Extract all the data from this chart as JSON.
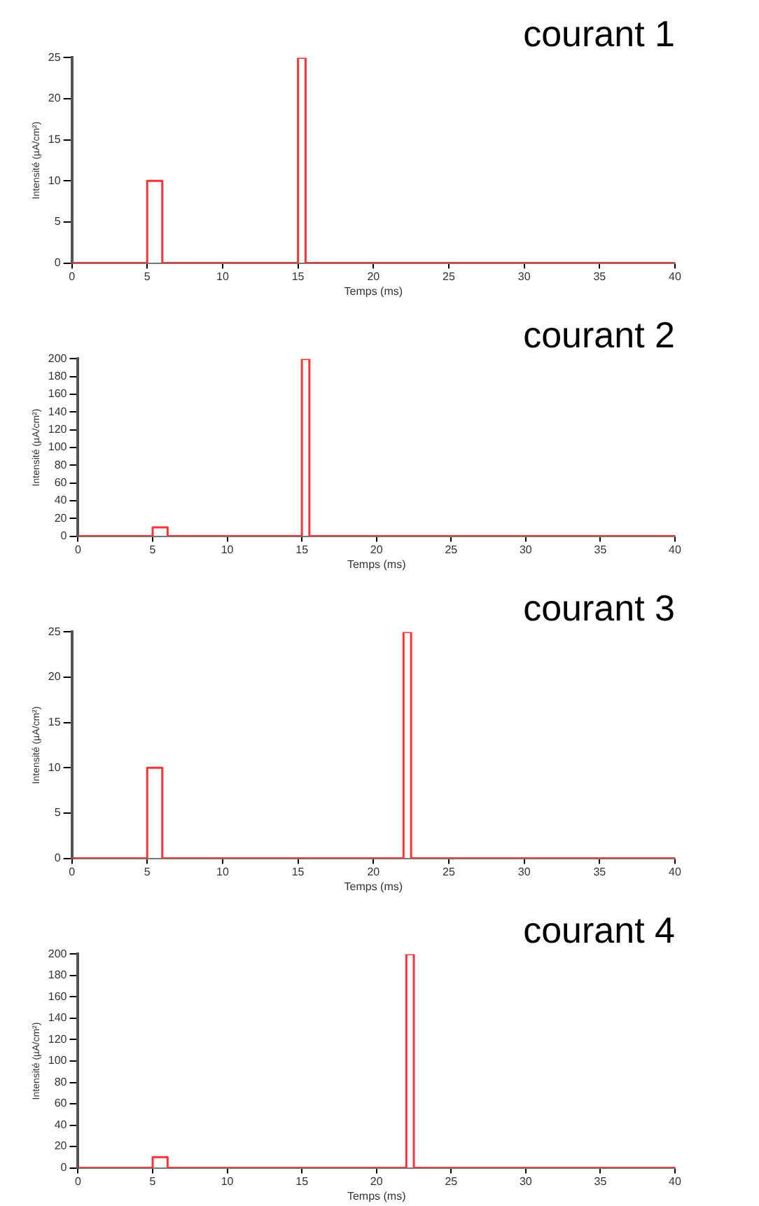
{
  "chart_data": [
    {
      "type": "line",
      "title": "courant 1",
      "xlabel": "Temps (ms)",
      "ylabel": "Intensité (µA/cm²)",
      "xlim": [
        0,
        40
      ],
      "xticks": [
        0,
        5,
        10,
        15,
        20,
        25,
        30,
        35,
        40
      ],
      "ylim": [
        0,
        25
      ],
      "yticks": [
        0,
        5,
        10,
        15,
        20,
        25
      ],
      "grid": false,
      "legend": false,
      "marker": "none",
      "line_style": "solid",
      "series": [
        {
          "color": "#ff3333",
          "x": [
            0,
            5,
            5,
            6,
            6,
            15,
            15,
            15.5,
            15.5,
            40
          ],
          "values": [
            0,
            0,
            10,
            10,
            0,
            0,
            25,
            25,
            0,
            0
          ]
        }
      ]
    },
    {
      "type": "line",
      "title": "courant 2",
      "xlabel": "Temps (ms)",
      "ylabel": "Intensité (µA/cm²)",
      "xlim": [
        0,
        40
      ],
      "xticks": [
        0,
        5,
        10,
        15,
        20,
        25,
        30,
        35,
        40
      ],
      "ylim": [
        0,
        200
      ],
      "yticks": [
        0,
        20,
        40,
        60,
        80,
        100,
        120,
        140,
        160,
        180,
        200
      ],
      "grid": false,
      "legend": false,
      "marker": "none",
      "line_style": "solid",
      "series": [
        {
          "color": "#ff3333",
          "x": [
            0,
            5,
            5,
            6,
            6,
            15,
            15,
            15.5,
            15.5,
            40
          ],
          "values": [
            0,
            0,
            10,
            10,
            0,
            0,
            200,
            200,
            0,
            0
          ]
        }
      ]
    },
    {
      "type": "line",
      "title": "courant 3",
      "xlabel": "Temps (ms)",
      "ylabel": "Intensité (µA/cm²)",
      "xlim": [
        0,
        40
      ],
      "xticks": [
        0,
        5,
        10,
        15,
        20,
        25,
        30,
        35,
        40
      ],
      "ylim": [
        0,
        25
      ],
      "yticks": [
        0,
        5,
        10,
        15,
        20,
        25
      ],
      "grid": false,
      "legend": false,
      "marker": "none",
      "line_style": "solid",
      "series": [
        {
          "color": "#ff3333",
          "x": [
            0,
            5,
            5,
            6,
            6,
            22,
            22,
            22.5,
            22.5,
            40
          ],
          "values": [
            0,
            0,
            10,
            10,
            0,
            0,
            25,
            25,
            0,
            0
          ]
        }
      ]
    },
    {
      "type": "line",
      "title": "courant 4",
      "xlabel": "Temps (ms)",
      "ylabel": "Intensité (µA/cm²)",
      "xlim": [
        0,
        40
      ],
      "xticks": [
        0,
        5,
        10,
        15,
        20,
        25,
        30,
        35,
        40
      ],
      "ylim": [
        0,
        200
      ],
      "yticks": [
        0,
        20,
        40,
        60,
        80,
        100,
        120,
        140,
        160,
        180,
        200
      ],
      "grid": false,
      "legend": false,
      "marker": "none",
      "line_style": "solid",
      "series": [
        {
          "color": "#ff3333",
          "x": [
            0,
            5,
            5,
            6,
            6,
            22,
            22,
            22.5,
            22.5,
            40
          ],
          "values": [
            0,
            0,
            10,
            10,
            0,
            0,
            200,
            200,
            0,
            0
          ]
        }
      ]
    }
  ]
}
